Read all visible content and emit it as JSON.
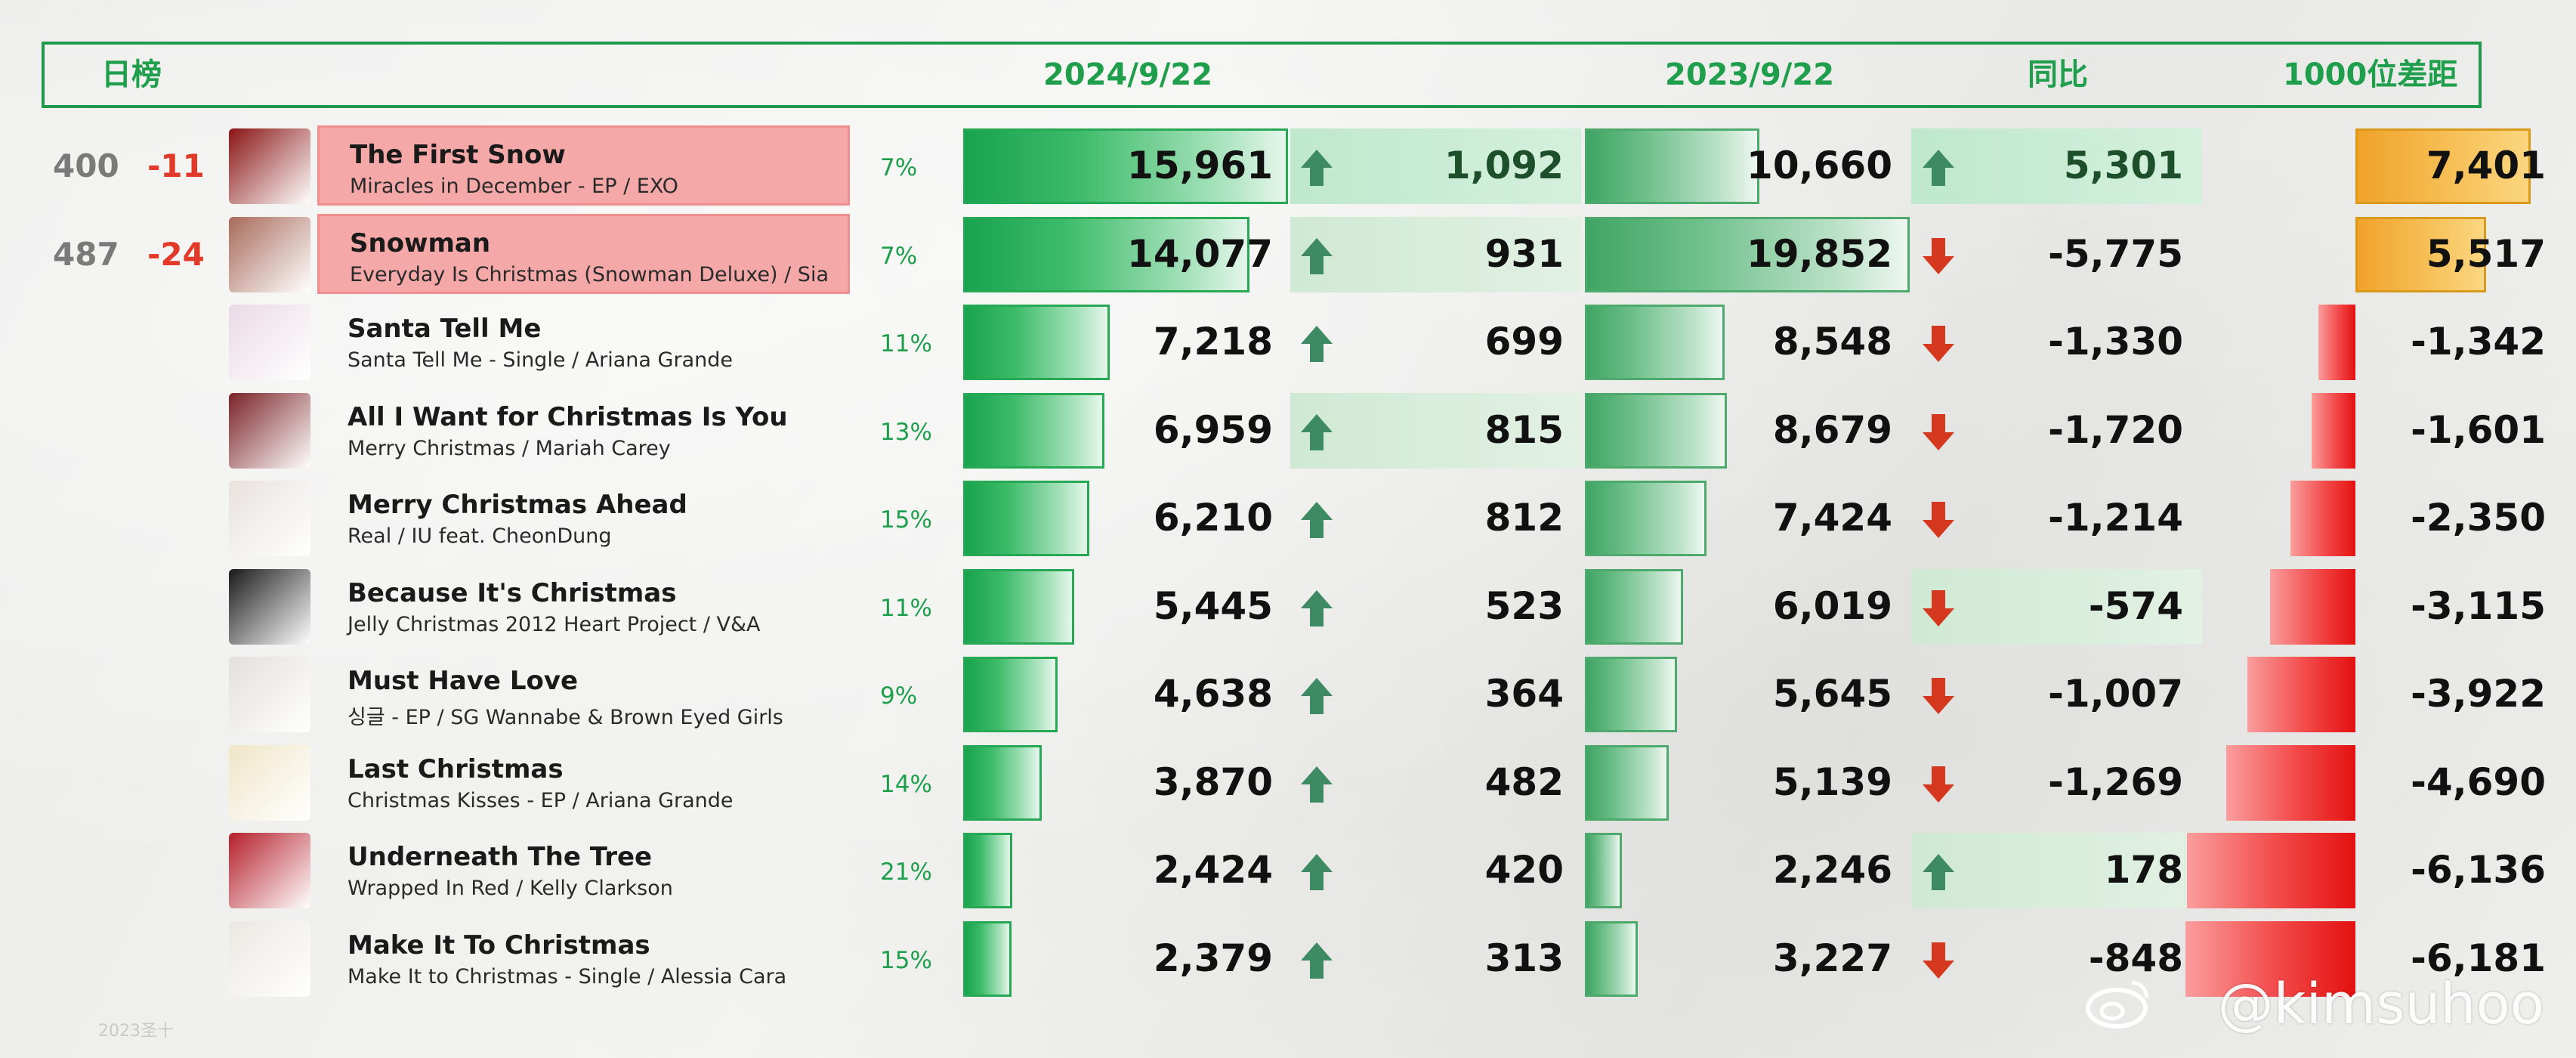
{
  "header": {
    "label": "日榜",
    "date_current": "2024/9/22",
    "date_previous": "2023/9/22",
    "yoy_label": "同比",
    "gap_label": "1000位差距"
  },
  "colors": {
    "accent_green": "#1f9e4c",
    "rank_change_red": "#e23a2a",
    "highlight_pink": "#f4a8a8",
    "gap_positive_orange": "#f0a22a",
    "gap_negative_red": "#e31111"
  },
  "chart_data": {
    "type": "table",
    "columns": [
      "rank",
      "rank_change",
      "title",
      "album_artist",
      "percent",
      "current_2024_9_22",
      "daily_change",
      "previous_2023_9_22",
      "yoy",
      "gap_to_1000"
    ],
    "rows": [
      {
        "rank": "400",
        "rank_change": "-11",
        "title": "The First Snow",
        "album": "Miracles in December - EP / EXO",
        "pct": "7%",
        "current": 15961,
        "current_label": "15,961",
        "daily_dir": "up",
        "daily": "1,092",
        "daily_hl": "g1",
        "prev": 10660,
        "prev_label": "10,660",
        "yoy_dir": "up",
        "yoy": "5,301",
        "yoy_hl": "g1",
        "gap": 7401,
        "gap_label": "7,401",
        "highlight": true
      },
      {
        "rank": "487",
        "rank_change": "-24",
        "title": "Snowman",
        "album": "Everyday Is Christmas (Snowman Deluxe) / Sia",
        "pct": "7%",
        "current": 14077,
        "current_label": "14,077",
        "daily_dir": "up",
        "daily": "931",
        "daily_hl": "g2",
        "prev": 19852,
        "prev_label": "19,852",
        "yoy_dir": "down",
        "yoy": "-5,775",
        "yoy_hl": "",
        "gap": 5517,
        "gap_label": "5,517",
        "highlight": true
      },
      {
        "rank": "",
        "rank_change": "",
        "title": "Santa Tell Me",
        "album": "Santa Tell Me - Single / Ariana Grande",
        "pct": "11%",
        "current": 7218,
        "current_label": "7,218",
        "daily_dir": "up",
        "daily": "699",
        "daily_hl": "",
        "prev": 8548,
        "prev_label": "8,548",
        "yoy_dir": "down",
        "yoy": "-1,330",
        "yoy_hl": "",
        "gap": -1342,
        "gap_label": "-1,342",
        "highlight": false
      },
      {
        "rank": "",
        "rank_change": "",
        "title": "All I Want for Christmas Is You",
        "album": "Merry Christmas / Mariah Carey",
        "pct": "13%",
        "current": 6959,
        "current_label": "6,959",
        "daily_dir": "up",
        "daily": "815",
        "daily_hl": "g2",
        "prev": 8679,
        "prev_label": "8,679",
        "yoy_dir": "down",
        "yoy": "-1,720",
        "yoy_hl": "",
        "gap": -1601,
        "gap_label": "-1,601",
        "highlight": false
      },
      {
        "rank": "",
        "rank_change": "",
        "title": "Merry Christmas Ahead",
        "album": "Real / IU feat. CheonDung",
        "pct": "15%",
        "current": 6210,
        "current_label": "6,210",
        "daily_dir": "up",
        "daily": "812",
        "daily_hl": "",
        "prev": 7424,
        "prev_label": "7,424",
        "yoy_dir": "down",
        "yoy": "-1,214",
        "yoy_hl": "",
        "gap": -2350,
        "gap_label": "-2,350",
        "highlight": false
      },
      {
        "rank": "",
        "rank_change": "",
        "title": "Because It's Christmas",
        "album": "Jelly Christmas 2012 Heart Project  / V&A",
        "pct": "11%",
        "current": 5445,
        "current_label": "5,445",
        "daily_dir": "up",
        "daily": "523",
        "daily_hl": "",
        "prev": 6019,
        "prev_label": "6,019",
        "yoy_dir": "down",
        "yoy": "-574",
        "yoy_hl": "g2",
        "gap": -3115,
        "gap_label": "-3,115",
        "highlight": false
      },
      {
        "rank": "",
        "rank_change": "",
        "title": "Must Have Love",
        "album": "싱글 - EP / SG Wannabe & Brown Eyed Girls",
        "pct": "9%",
        "current": 4638,
        "current_label": "4,638",
        "daily_dir": "up",
        "daily": "364",
        "daily_hl": "",
        "prev": 5645,
        "prev_label": "5,645",
        "yoy_dir": "down",
        "yoy": "-1,007",
        "yoy_hl": "",
        "gap": -3922,
        "gap_label": "-3,922",
        "highlight": false
      },
      {
        "rank": "",
        "rank_change": "",
        "title": "Last Christmas",
        "album": "Christmas Kisses - EP / Ariana Grande",
        "pct": "14%",
        "current": 3870,
        "current_label": "3,870",
        "daily_dir": "up",
        "daily": "482",
        "daily_hl": "",
        "prev": 5139,
        "prev_label": "5,139",
        "yoy_dir": "down",
        "yoy": "-1,269",
        "yoy_hl": "",
        "gap": -4690,
        "gap_label": "-4,690",
        "highlight": false
      },
      {
        "rank": "",
        "rank_change": "",
        "title": "Underneath The Tree",
        "album": "Wrapped In Red / Kelly Clarkson",
        "pct": "21%",
        "current": 2424,
        "current_label": "2,424",
        "daily_dir": "up",
        "daily": "420",
        "daily_hl": "",
        "prev": 2246,
        "prev_label": "2,246",
        "yoy_dir": "up",
        "yoy": "178",
        "yoy_hl": "g2",
        "gap": -6136,
        "gap_label": "-6,136",
        "highlight": false
      },
      {
        "rank": "",
        "rank_change": "",
        "title": "Make It To Christmas",
        "album": "Make It to Christmas - Single / Alessia Cara",
        "pct": "15%",
        "current": 2379,
        "current_label": "2,379",
        "daily_dir": "up",
        "daily": "313",
        "daily_hl": "",
        "prev": 3227,
        "prev_label": "3,227",
        "yoy_dir": "down",
        "yoy": "-848",
        "yoy_hl": "",
        "gap": -6181,
        "gap_label": "-6,181",
        "highlight": false
      }
    ]
  },
  "watermark": "@kimsuhoo",
  "footnote": "2023圣十"
}
